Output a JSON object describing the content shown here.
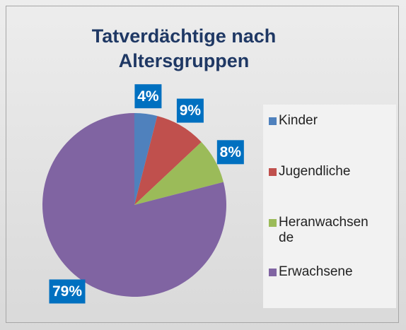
{
  "chart_data": {
    "type": "pie",
    "title": "Tatverdächtige nach Altersgruppen",
    "categories": [
      "Kinder",
      "Jugendliche",
      "Heranwachsende",
      "Erwachsene"
    ],
    "values": [
      4,
      9,
      8,
      79
    ],
    "value_labels": [
      "4%",
      "9%",
      "8%",
      "79%"
    ],
    "colors": [
      "#4f81bd",
      "#c0504d",
      "#9bbb59",
      "#8064a2"
    ],
    "legend": "right"
  }
}
